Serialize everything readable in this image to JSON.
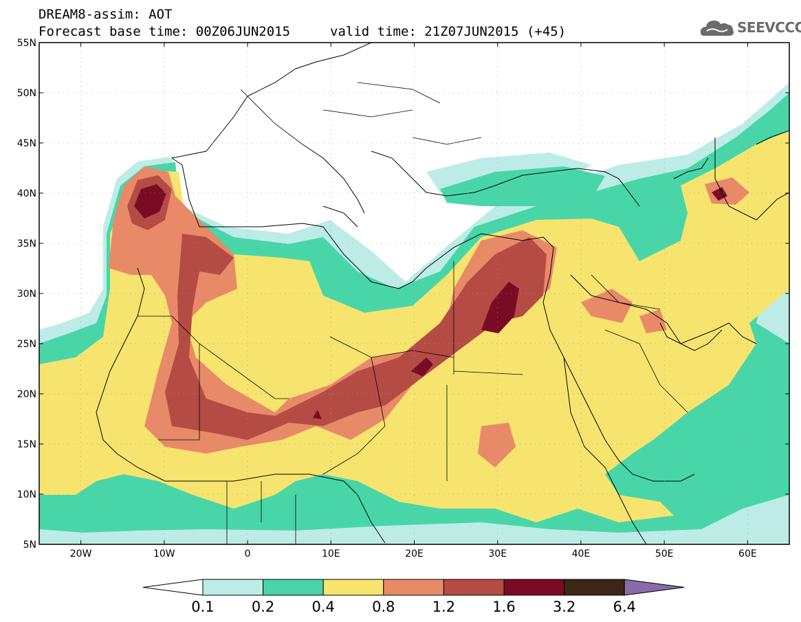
{
  "header": {
    "title_line1": "DREAM8-assim: AOT",
    "title_line2": "Forecast base time: 00Z06JUN2015",
    "valid_time": "valid time: 21Z07JUN2015 (+45)",
    "logo_text": "SEEVCCC"
  },
  "map": {
    "lon_range": [
      -25,
      65
    ],
    "lat_range": [
      5,
      55
    ],
    "lat_labels": [
      "5N",
      "10N",
      "15N",
      "20N",
      "25N",
      "30N",
      "35N",
      "40N",
      "45N",
      "50N",
      "55N"
    ],
    "lon_labels": [
      "20W",
      "10W",
      "0",
      "10E",
      "20E",
      "30E",
      "40E",
      "50E",
      "60E"
    ],
    "grid": "dotted"
  },
  "colorbar": {
    "levels": [
      "0.1",
      "0.2",
      "0.4",
      "0.8",
      "1.2",
      "1.6",
      "3.2",
      "6.4"
    ],
    "colors": [
      "#ffffff",
      "#bdece6",
      "#48d6a8",
      "#f7e46e",
      "#e88a68",
      "#b44c44",
      "#7a0b25",
      "#3c2616",
      "#8a6aa8"
    ]
  }
}
